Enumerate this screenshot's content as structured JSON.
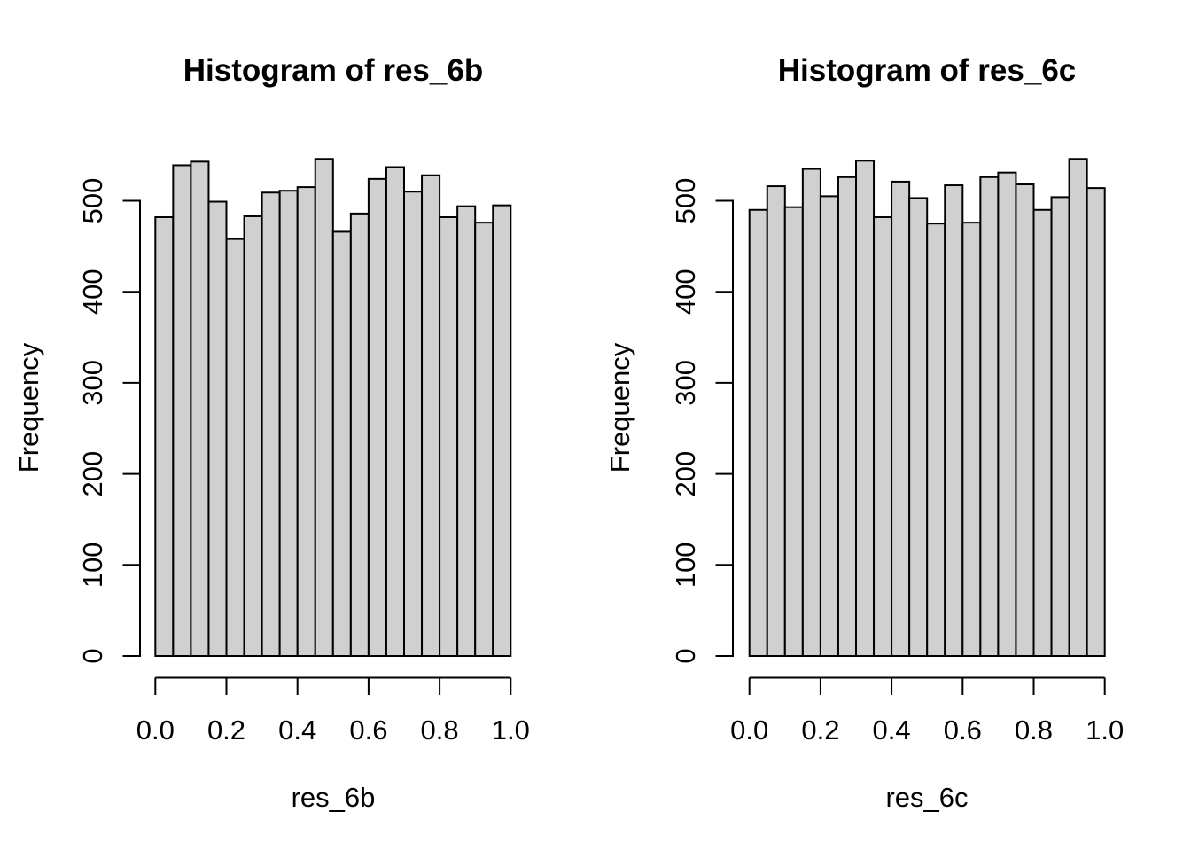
{
  "figure": {
    "background": "#ffffff",
    "text_color": "#000000"
  },
  "chart_data": [
    {
      "type": "bar",
      "subtype": "histogram",
      "title": "Histogram of res_6b",
      "xlabel": "res_6b",
      "ylabel": "Frequency",
      "xlim": [
        0.0,
        1.0
      ],
      "ylim": [
        0,
        500
      ],
      "grid": false,
      "legend": "none",
      "bin_start": 0.0,
      "bin_width": 0.05,
      "counts": [
        482,
        539,
        543,
        499,
        458,
        483,
        509,
        511,
        515,
        546,
        466,
        486,
        524,
        537,
        510,
        528,
        482,
        494,
        476,
        495
      ],
      "x_tick_values": [
        0.0,
        0.2,
        0.4,
        0.6,
        0.8,
        1.0
      ],
      "x_ticks": [
        "0.0",
        "0.2",
        "0.4",
        "0.6",
        "0.8",
        "1.0"
      ],
      "y_tick_values": [
        0,
        100,
        200,
        300,
        400,
        500
      ],
      "y_ticks": [
        "0",
        "100",
        "200",
        "300",
        "400",
        "500"
      ],
      "bar_fill": "#d0d0d0",
      "bar_border": "#000000"
    },
    {
      "type": "bar",
      "subtype": "histogram",
      "title": "Histogram of res_6c",
      "xlabel": "res_6c",
      "ylabel": "Frequency",
      "xlim": [
        0.0,
        1.0
      ],
      "ylim": [
        0,
        500
      ],
      "grid": false,
      "legend": "none",
      "bin_start": 0.0,
      "bin_width": 0.05,
      "counts": [
        490,
        516,
        493,
        535,
        505,
        526,
        544,
        482,
        521,
        503,
        475,
        517,
        476,
        526,
        531,
        518,
        490,
        504,
        546,
        514
      ],
      "x_tick_values": [
        0.0,
        0.2,
        0.4,
        0.6,
        0.8,
        1.0
      ],
      "x_ticks": [
        "0.0",
        "0.2",
        "0.4",
        "0.6",
        "0.8",
        "1.0"
      ],
      "y_tick_values": [
        0,
        100,
        200,
        300,
        400,
        500
      ],
      "y_ticks": [
        "0",
        "100",
        "200",
        "300",
        "400",
        "500"
      ],
      "bar_fill": "#d0d0d0",
      "bar_border": "#000000"
    }
  ]
}
